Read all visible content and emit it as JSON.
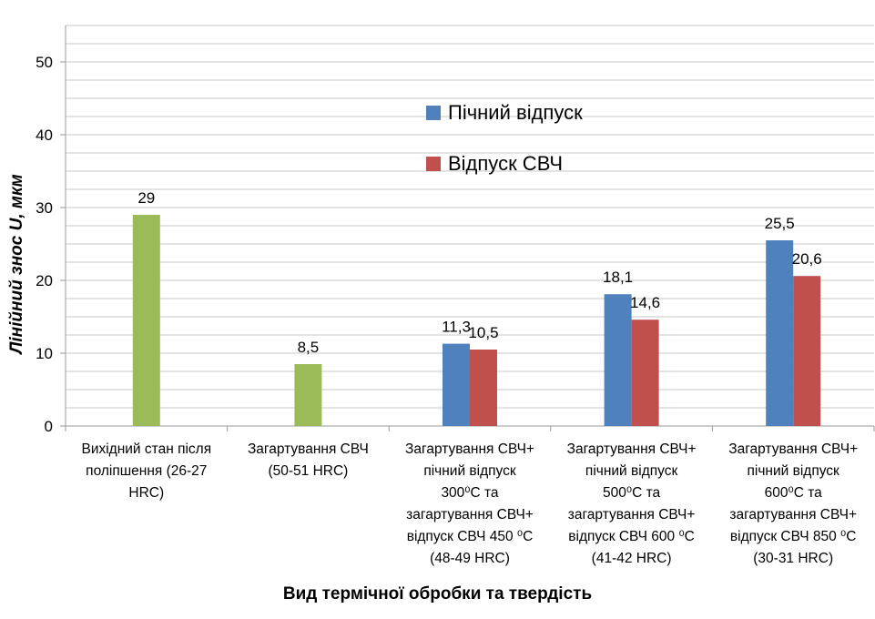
{
  "chart_data": {
    "type": "bar",
    "xlabel": "Вид термічної обробки та твердість",
    "ylabel": "Лінійний знос U, мкм",
    "ylim": [
      0,
      55
    ],
    "yticks": [
      0,
      10,
      20,
      30,
      40,
      50
    ],
    "minor_grid_step": 2.5,
    "grid": true,
    "legend_position": "top-center",
    "categories": [
      "Вихідний стан після\nполіпшення (26-27\nHRC)",
      "Загартування СВЧ\n(50-51 HRC)",
      "Загартування СВЧ+\nпічний відпуск\n300⁰С та\nзагартування СВЧ+\nвідпуск СВЧ 450 ⁰С\n(48-49 HRC)",
      "Загартування СВЧ+\nпічний відпуск\n500⁰С та\nзагартування СВЧ+\nвідпуск СВЧ 600 ⁰С\n(41-42 HRC)",
      "Загартування СВЧ+\nпічний відпуск\n600⁰С та\nзагартування СВЧ+\nвідпуск СВЧ 850 ⁰С\n(30-31 HRC)"
    ],
    "series": [
      {
        "name": "Пічний відпуск",
        "color": "#4f81bd",
        "values": [
          null,
          null,
          11.3,
          18.1,
          25.5
        ],
        "labels": [
          "",
          "",
          "11,3",
          "18,1",
          "25,5"
        ]
      },
      {
        "name": "Відпуск СВЧ",
        "color": "#c0504d",
        "values": [
          null,
          null,
          10.5,
          14.6,
          20.6
        ],
        "labels": [
          "",
          "",
          "10,5",
          "14,6",
          "20,6"
        ]
      },
      {
        "name": "",
        "color": "#9bbb59",
        "values": [
          29,
          8.5,
          null,
          null,
          null
        ],
        "labels": [
          "29",
          "8,5",
          "",
          "",
          ""
        ]
      }
    ]
  }
}
